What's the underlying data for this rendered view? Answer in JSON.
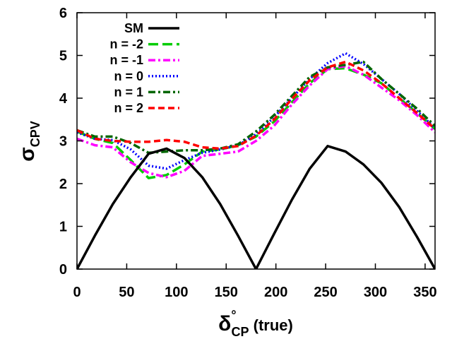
{
  "chart_data": {
    "type": "line",
    "xlabel": "δ°CP (true)",
    "xlabel_parts": {
      "main": "δ",
      "sup": "°",
      "sub": "CP",
      "suffix": " (true)"
    },
    "ylabel": "σCPV",
    "ylabel_parts": {
      "main": "σ",
      "sub": "CPV"
    },
    "xlim": [
      0,
      360
    ],
    "ylim": [
      0,
      6
    ],
    "xticks": [
      0,
      50,
      100,
      150,
      200,
      250,
      300,
      350
    ],
    "yticks": [
      0,
      1,
      2,
      3,
      4,
      5,
      6
    ],
    "grid": false,
    "legend_position": "top-left",
    "series": [
      {
        "name": "SM",
        "color": "#000000",
        "dash": "solid",
        "points": [
          [
            0,
            0
          ],
          [
            18,
            0.78
          ],
          [
            36,
            1.52
          ],
          [
            54,
            2.15
          ],
          [
            72,
            2.7
          ],
          [
            90,
            2.82
          ],
          [
            108,
            2.6
          ],
          [
            126,
            2.15
          ],
          [
            144,
            1.52
          ],
          [
            162,
            0.78
          ],
          [
            180,
            0
          ],
          [
            198,
            0.82
          ],
          [
            216,
            1.62
          ],
          [
            234,
            2.35
          ],
          [
            252,
            2.88
          ],
          [
            270,
            2.75
          ],
          [
            288,
            2.45
          ],
          [
            306,
            2.02
          ],
          [
            324,
            1.45
          ],
          [
            342,
            0.75
          ],
          [
            360,
            0
          ]
        ]
      },
      {
        "name": "n = -2",
        "color": "#00cc00",
        "dash": "long",
        "points": [
          [
            0,
            3.22
          ],
          [
            18,
            3.05
          ],
          [
            36,
            2.95
          ],
          [
            54,
            2.55
          ],
          [
            72,
            2.13
          ],
          [
            90,
            2.2
          ],
          [
            108,
            2.45
          ],
          [
            126,
            2.75
          ],
          [
            144,
            2.8
          ],
          [
            162,
            2.9
          ],
          [
            180,
            3.1
          ],
          [
            198,
            3.45
          ],
          [
            216,
            3.9
          ],
          [
            234,
            4.35
          ],
          [
            252,
            4.68
          ],
          [
            270,
            4.7
          ],
          [
            288,
            4.55
          ],
          [
            306,
            4.35
          ],
          [
            324,
            4.0
          ],
          [
            342,
            3.65
          ],
          [
            360,
            3.28
          ]
        ]
      },
      {
        "name": "n = -1",
        "color": "#ff00ff",
        "dash": "dashdot",
        "points": [
          [
            0,
            3.05
          ],
          [
            18,
            2.9
          ],
          [
            36,
            2.85
          ],
          [
            54,
            2.5
          ],
          [
            72,
            2.25
          ],
          [
            90,
            2.15
          ],
          [
            108,
            2.3
          ],
          [
            126,
            2.65
          ],
          [
            144,
            2.7
          ],
          [
            162,
            2.75
          ],
          [
            180,
            3.0
          ],
          [
            198,
            3.35
          ],
          [
            216,
            3.85
          ],
          [
            234,
            4.3
          ],
          [
            252,
            4.68
          ],
          [
            270,
            4.75
          ],
          [
            288,
            4.55
          ],
          [
            306,
            4.25
          ],
          [
            324,
            3.95
          ],
          [
            342,
            3.6
          ],
          [
            360,
            3.2
          ]
        ]
      },
      {
        "name": "n = 0",
        "color": "#0000ff",
        "dash": "dotted",
        "points": [
          [
            0,
            3.2
          ],
          [
            18,
            3.05
          ],
          [
            36,
            3.02
          ],
          [
            54,
            2.8
          ],
          [
            72,
            2.42
          ],
          [
            90,
            2.35
          ],
          [
            108,
            2.55
          ],
          [
            126,
            2.72
          ],
          [
            144,
            2.8
          ],
          [
            162,
            2.9
          ],
          [
            180,
            3.15
          ],
          [
            198,
            3.55
          ],
          [
            216,
            4.0
          ],
          [
            234,
            4.45
          ],
          [
            252,
            4.82
          ],
          [
            270,
            5.05
          ],
          [
            288,
            4.8
          ],
          [
            306,
            4.45
          ],
          [
            324,
            4.1
          ],
          [
            342,
            3.7
          ],
          [
            360,
            3.3
          ]
        ]
      },
      {
        "name": "n = 1",
        "color": "#006600",
        "dash": "dashdot",
        "points": [
          [
            0,
            3.25
          ],
          [
            18,
            3.1
          ],
          [
            36,
            3.1
          ],
          [
            54,
            2.95
          ],
          [
            72,
            2.72
          ],
          [
            90,
            2.75
          ],
          [
            108,
            2.78
          ],
          [
            126,
            2.78
          ],
          [
            144,
            2.82
          ],
          [
            162,
            2.92
          ],
          [
            180,
            3.22
          ],
          [
            198,
            3.6
          ],
          [
            216,
            4.05
          ],
          [
            234,
            4.5
          ],
          [
            252,
            4.72
          ],
          [
            270,
            4.78
          ],
          [
            288,
            4.85
          ],
          [
            306,
            4.45
          ],
          [
            324,
            4.1
          ],
          [
            342,
            3.75
          ],
          [
            360,
            3.35
          ]
        ]
      },
      {
        "name": "n = 2",
        "color": "#ff0000",
        "dash": "dashed",
        "points": [
          [
            0,
            3.25
          ],
          [
            18,
            3.05
          ],
          [
            36,
            3.0
          ],
          [
            54,
            2.98
          ],
          [
            72,
            2.98
          ],
          [
            90,
            3.02
          ],
          [
            108,
            2.98
          ],
          [
            126,
            2.85
          ],
          [
            144,
            2.82
          ],
          [
            162,
            2.88
          ],
          [
            180,
            3.12
          ],
          [
            198,
            3.5
          ],
          [
            216,
            3.98
          ],
          [
            234,
            4.42
          ],
          [
            252,
            4.72
          ],
          [
            270,
            4.85
          ],
          [
            288,
            4.65
          ],
          [
            306,
            4.35
          ],
          [
            324,
            4.0
          ],
          [
            342,
            3.65
          ],
          [
            360,
            3.28
          ]
        ]
      }
    ]
  }
}
